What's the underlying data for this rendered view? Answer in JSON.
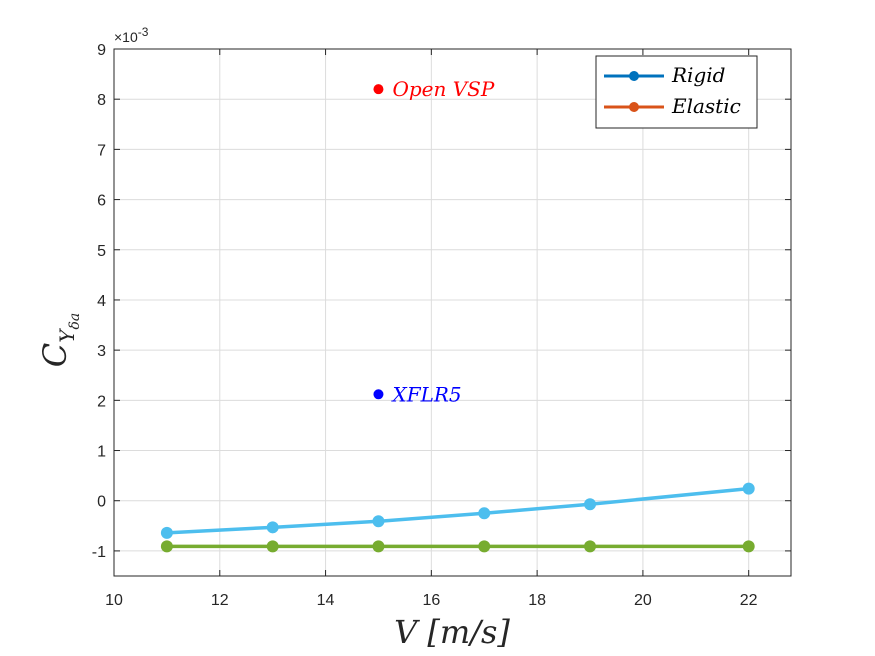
{
  "chart_data": {
    "type": "line",
    "xlabel": "V [m/s]",
    "ylabel_main": "C",
    "ylabel_sub": "Y",
    "ylabel_subsub": "δa",
    "y_exponent": "×10",
    "y_exponent_power": "-3",
    "xlim": [
      10,
      22.8
    ],
    "ylim": [
      -1.5,
      9
    ],
    "xticks": [
      10,
      12,
      14,
      16,
      18,
      20,
      22
    ],
    "yticks": [
      -1,
      0,
      1,
      2,
      3,
      4,
      5,
      6,
      7,
      8,
      9
    ],
    "grid": true,
    "legend_placement": "top-right",
    "legend": [
      {
        "name": "Rigid",
        "color": "#0072BD"
      },
      {
        "name": "Elastic",
        "color": "#D95319"
      }
    ],
    "series": [
      {
        "name": "Rigid",
        "color": "#4DBEEE",
        "x": [
          11,
          13,
          15,
          17,
          19,
          22
        ],
        "y": [
          -0.64,
          -0.53,
          -0.41,
          -0.25,
          -0.07,
          0.24
        ]
      },
      {
        "name": "Elastic",
        "color": "#77AC30",
        "x": [
          11,
          13,
          15,
          17,
          19,
          22
        ],
        "y": [
          -0.91,
          -0.91,
          -0.91,
          -0.91,
          -0.91,
          -0.91
        ]
      }
    ],
    "annotations": [
      {
        "label": "Open VSP",
        "x": 15,
        "y": 8.2,
        "color": "#FF0000"
      },
      {
        "label": "XFLR5",
        "x": 15,
        "y": 2.12,
        "color": "#0000FF"
      }
    ]
  }
}
